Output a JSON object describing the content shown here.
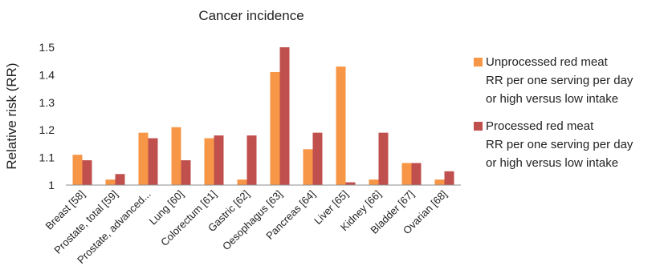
{
  "chart_data": {
    "type": "bar",
    "title": "Cancer incidence",
    "xlabel": "",
    "ylabel": "Relative risk (RR)",
    "ylim": [
      1,
      1.5
    ],
    "yticks": [
      "1",
      "1.1",
      "1.2",
      "1.3",
      "1.4",
      "1.5"
    ],
    "grid": false,
    "legend_position": "right",
    "categories": [
      "Breast [58]",
      "Prostate, total [59]",
      "Prostate, advanced...",
      "Lung [60]",
      "Colorectum [61]",
      "Gastric [62]",
      "Oesophagus [63]",
      "Pancreas [64]",
      "Liver [65]",
      "Kidney [66]",
      "Bladder [67]",
      "Ovarian [68]"
    ],
    "series": [
      {
        "name": "Unprocessed red meat RR per one serving per day or high versus low intake",
        "legend_lines": [
          "Unprocessed red meat",
          "RR per one serving per day",
          "or high versus low intake"
        ],
        "color": "#F79646",
        "values": [
          1.11,
          1.02,
          1.19,
          1.21,
          1.17,
          1.02,
          1.41,
          1.13,
          1.43,
          1.02,
          1.08,
          1.02
        ]
      },
      {
        "name": "Processed red meat RR per one serving per day or high versus low intake",
        "legend_lines": [
          "Processed red meat",
          "RR per one serving per day",
          "or high versus low intake"
        ],
        "color": "#C0504D",
        "values": [
          1.09,
          1.04,
          1.17,
          1.09,
          1.18,
          1.18,
          1.5,
          1.19,
          1.01,
          1.19,
          1.08,
          1.05
        ]
      }
    ]
  }
}
